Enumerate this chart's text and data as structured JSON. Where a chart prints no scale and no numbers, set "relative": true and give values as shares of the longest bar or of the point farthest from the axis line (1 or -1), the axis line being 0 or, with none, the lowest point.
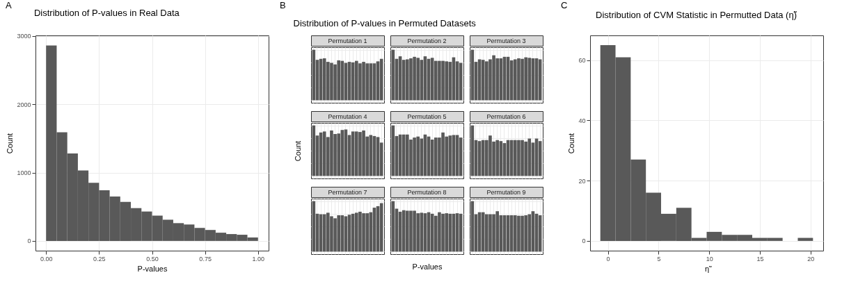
{
  "chart_data": [
    {
      "type": "histogram",
      "title": "Distribution of P-values in Real Data",
      "xlabel": "P-values",
      "ylabel": "Count",
      "annotations": [
        "A"
      ],
      "color": "#595959",
      "grid": true,
      "bins": [
        0,
        0.05,
        0.1,
        0.15,
        0.2,
        0.25,
        0.3,
        0.35,
        0.4,
        0.45,
        0.5,
        0.55,
        0.6,
        0.65,
        0.7,
        0.75,
        0.8,
        0.85,
        0.9,
        0.95,
        1
      ],
      "values": [
        2860,
        1590,
        1280,
        1030,
        850,
        740,
        650,
        570,
        480,
        430,
        370,
        310,
        260,
        240,
        190,
        160,
        120,
        100,
        90,
        50
      ],
      "xlim": [
        -0.05,
        1.05
      ],
      "ylim": [
        -143,
        3007
      ],
      "xticks": [
        {
          "value": 0,
          "label": "0.00"
        },
        {
          "value": 0.25,
          "label": "0.25"
        },
        {
          "value": 0.5,
          "label": "0.50"
        },
        {
          "value": 0.75,
          "label": "0.75"
        },
        {
          "value": 1,
          "label": "1.00"
        }
      ],
      "yticks": [
        0,
        1000,
        2000,
        3000
      ]
    },
    {
      "type": "bar",
      "title": "Permutation 1",
      "annotations": [
        "B",
        "Distribution of P-values in Permuted Datasets"
      ],
      "relative": true,
      "grid": true,
      "tick_labels": false,
      "color": "#595959",
      "categories": [
        null,
        null,
        null,
        null,
        null,
        null,
        null,
        null,
        null,
        null,
        null,
        null,
        null,
        null,
        null,
        null,
        null,
        null,
        null,
        null
      ],
      "values": [
        1.0,
        0.8,
        0.82,
        0.83,
        0.76,
        0.74,
        0.71,
        0.79,
        0.78,
        0.74,
        0.76,
        0.75,
        0.78,
        0.73,
        0.76,
        0.73,
        0.73,
        0.73,
        0.77,
        0.82
      ]
    },
    {
      "type": "bar",
      "title": "Permutation 2",
      "relative": true,
      "grid": true,
      "tick_labels": false,
      "color": "#595959",
      "categories": [
        null,
        null,
        null,
        null,
        null,
        null,
        null,
        null,
        null,
        null,
        null,
        null,
        null,
        null,
        null,
        null,
        null,
        null,
        null,
        null
      ],
      "values": [
        1.0,
        0.82,
        0.87,
        0.8,
        0.81,
        0.83,
        0.86,
        0.84,
        0.8,
        0.87,
        0.82,
        0.84,
        0.78,
        0.78,
        0.78,
        0.77,
        0.76,
        0.85,
        0.77,
        0.74
      ]
    },
    {
      "type": "bar",
      "title": "Permutation 3",
      "relative": true,
      "grid": true,
      "tick_labels": false,
      "color": "#595959",
      "categories": [
        null,
        null,
        null,
        null,
        null,
        null,
        null,
        null,
        null,
        null,
        null,
        null,
        null,
        null,
        null,
        null,
        null,
        null,
        null,
        null
      ],
      "values": [
        1.0,
        0.76,
        0.81,
        0.8,
        0.77,
        0.81,
        0.89,
        0.83,
        0.83,
        0.86,
        0.86,
        0.79,
        0.81,
        0.83,
        0.82,
        0.85,
        0.84,
        0.83,
        0.83,
        0.81
      ]
    },
    {
      "type": "bar",
      "title": "Permutation 4",
      "ylabel": "Count",
      "relative": true,
      "grid": true,
      "tick_labels": false,
      "color": "#595959",
      "categories": [
        null,
        null,
        null,
        null,
        null,
        null,
        null,
        null,
        null,
        null,
        null,
        null,
        null,
        null,
        null,
        null,
        null,
        null,
        null,
        null
      ],
      "values": [
        1.0,
        0.8,
        0.86,
        0.88,
        0.77,
        0.9,
        0.83,
        0.84,
        0.91,
        0.92,
        0.81,
        0.88,
        0.88,
        0.87,
        0.9,
        0.78,
        0.81,
        0.79,
        0.77,
        0.66
      ]
    },
    {
      "type": "bar",
      "title": "Permutation 5",
      "relative": true,
      "grid": true,
      "tick_labels": false,
      "color": "#595959",
      "categories": [
        null,
        null,
        null,
        null,
        null,
        null,
        null,
        null,
        null,
        null,
        null,
        null,
        null,
        null,
        null,
        null,
        null,
        null,
        null,
        null
      ],
      "values": [
        1.0,
        0.79,
        0.82,
        0.82,
        0.82,
        0.72,
        0.76,
        0.78,
        0.74,
        0.82,
        0.78,
        0.72,
        0.76,
        0.76,
        0.86,
        0.78,
        0.8,
        0.81,
        0.81,
        0.76
      ]
    },
    {
      "type": "bar",
      "title": "Permutation 6",
      "relative": true,
      "grid": true,
      "tick_labels": false,
      "color": "#595959",
      "categories": [
        null,
        null,
        null,
        null,
        null,
        null,
        null,
        null,
        null,
        null,
        null,
        null,
        null,
        null,
        null,
        null,
        null,
        null,
        null,
        null
      ],
      "values": [
        1.0,
        0.71,
        0.69,
        0.71,
        0.71,
        0.8,
        0.68,
        0.71,
        0.69,
        0.65,
        0.71,
        0.71,
        0.71,
        0.71,
        0.71,
        0.68,
        0.74,
        0.66,
        0.74,
        0.69
      ]
    },
    {
      "type": "bar",
      "title": "Permutation 7",
      "relative": true,
      "grid": true,
      "tick_labels": false,
      "color": "#595959",
      "categories": [
        null,
        null,
        null,
        null,
        null,
        null,
        null,
        null,
        null,
        null,
        null,
        null,
        null,
        null,
        null,
        null,
        null,
        null,
        null,
        null
      ],
      "values": [
        1.0,
        0.75,
        0.74,
        0.74,
        0.77,
        0.7,
        0.66,
        0.72,
        0.72,
        0.7,
        0.73,
        0.75,
        0.77,
        0.79,
        0.76,
        0.76,
        0.78,
        0.87,
        0.9,
        0.96
      ]
    },
    {
      "type": "bar",
      "title": "Permutation 8",
      "xlabel": "P-values",
      "relative": true,
      "grid": true,
      "tick_labels": false,
      "color": "#595959",
      "categories": [
        null,
        null,
        null,
        null,
        null,
        null,
        null,
        null,
        null,
        null,
        null,
        null,
        null,
        null,
        null,
        null,
        null,
        null,
        null,
        null
      ],
      "values": [
        1.0,
        0.85,
        0.79,
        0.82,
        0.81,
        0.81,
        0.81,
        0.76,
        0.77,
        0.76,
        0.78,
        0.75,
        0.71,
        0.78,
        0.75,
        0.76,
        0.75,
        0.75,
        0.76,
        0.75
      ]
    },
    {
      "type": "bar",
      "title": "Permutation 9",
      "relative": true,
      "grid": true,
      "tick_labels": false,
      "color": "#595959",
      "categories": [
        null,
        null,
        null,
        null,
        null,
        null,
        null,
        null,
        null,
        null,
        null,
        null,
        null,
        null,
        null,
        null,
        null,
        null,
        null,
        null
      ],
      "values": [
        1.0,
        0.74,
        0.78,
        0.78,
        0.74,
        0.74,
        0.74,
        0.8,
        0.72,
        0.72,
        0.72,
        0.72,
        0.72,
        0.71,
        0.71,
        0.72,
        0.74,
        0.8,
        0.75,
        0.72
      ]
    },
    {
      "type": "histogram",
      "title": "Distribution of CVM Statistic in Permutted Data (η̃)",
      "xlabel": "η̃",
      "ylabel": "Count",
      "annotations": [
        "C"
      ],
      "color": "#595959",
      "grid": true,
      "bins": [
        -0.75,
        0.75,
        2.25,
        3.75,
        5.25,
        6.75,
        8.25,
        9.75,
        11.25,
        12.75,
        14.25,
        15.75,
        17.25,
        18.75,
        20.25
      ],
      "values": [
        65,
        61,
        27,
        16,
        9,
        11,
        1,
        3,
        2,
        2,
        1,
        1,
        0,
        1
      ],
      "xlim": [
        -1.76,
        21.26
      ],
      "ylim": [
        -3.25,
        68.25
      ],
      "xticks": [
        0,
        5,
        10,
        15,
        20
      ],
      "yticks": [
        0,
        20,
        40,
        60
      ]
    }
  ]
}
